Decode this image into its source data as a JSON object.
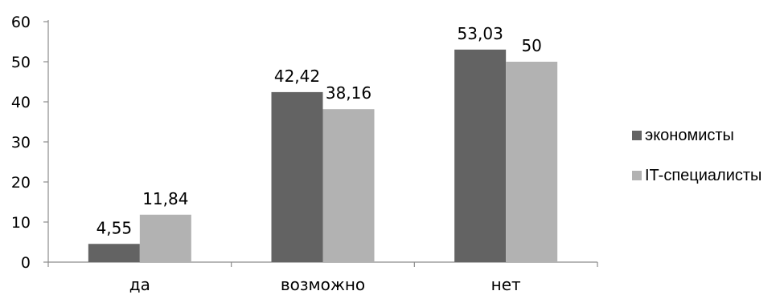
{
  "chart_data": {
    "type": "bar",
    "categories": [
      "да",
      "возможно",
      "нет"
    ],
    "series": [
      {
        "name": "экономисты",
        "color": "#636363",
        "values": [
          4.55,
          42.42,
          53.03
        ],
        "labels": [
          "4,55",
          "42,42",
          "53,03"
        ]
      },
      {
        "name": "IT-специалисты",
        "color": "#b2b2b2",
        "values": [
          11.84,
          38.16,
          50
        ],
        "labels": [
          "11,84",
          "38,16",
          "50"
        ]
      }
    ],
    "ylim": [
      0,
      60
    ],
    "yticks": [
      0,
      10,
      20,
      30,
      40,
      50,
      60
    ],
    "grid": false,
    "legend": "right"
  }
}
